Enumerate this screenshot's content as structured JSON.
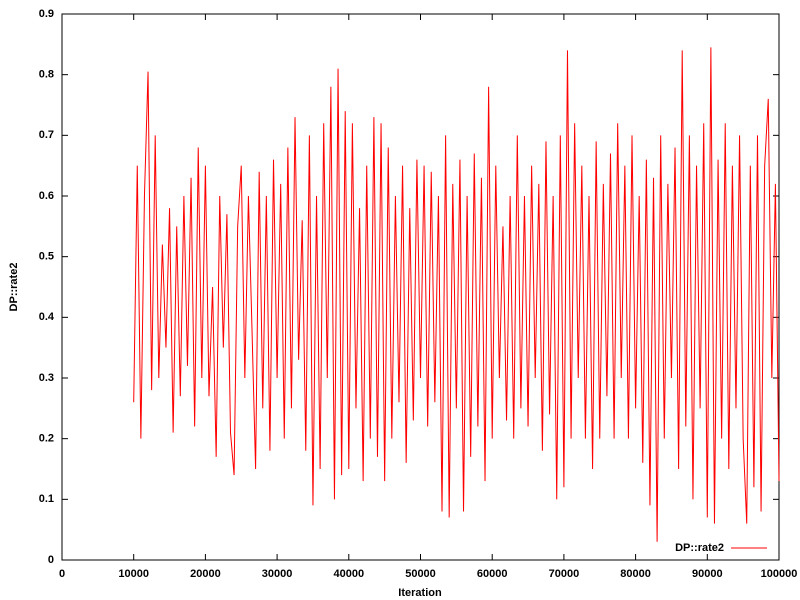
{
  "chart_data": {
    "type": "line",
    "xlabel": "Iteration",
    "ylabel": "DP::rate2",
    "x": [
      10000,
      10500,
      11000,
      11500,
      12000,
      12500,
      13000,
      13500,
      14000,
      14500,
      15000,
      15500,
      16000,
      16500,
      17000,
      17500,
      18000,
      18500,
      19000,
      19500,
      20000,
      20500,
      21000,
      21500,
      22000,
      22500,
      23000,
      23500,
      24000,
      24500,
      25000,
      25500,
      26000,
      26500,
      27000,
      27500,
      28000,
      28500,
      29000,
      29500,
      30000,
      30500,
      31000,
      31500,
      32000,
      32500,
      33000,
      33500,
      34000,
      34500,
      35000,
      35500,
      36000,
      36500,
      37000,
      37500,
      38000,
      38500,
      39000,
      39500,
      40000,
      40500,
      41000,
      41500,
      42000,
      42500,
      43000,
      43500,
      44000,
      44500,
      45000,
      45500,
      46000,
      46500,
      47000,
      47500,
      48000,
      48500,
      49000,
      49500,
      50000,
      50500,
      51000,
      51500,
      52000,
      52500,
      53000,
      53500,
      54000,
      54500,
      55000,
      55500,
      56000,
      56500,
      57000,
      57500,
      58000,
      58500,
      59000,
      59500,
      60000,
      60500,
      61000,
      61500,
      62000,
      62500,
      63000,
      63500,
      64000,
      64500,
      65000,
      65500,
      66000,
      66500,
      67000,
      67500,
      68000,
      68500,
      69000,
      69500,
      70000,
      70500,
      71000,
      71500,
      72000,
      72500,
      73000,
      73500,
      74000,
      74500,
      75000,
      75500,
      76000,
      76500,
      77000,
      77500,
      78000,
      78500,
      79000,
      79500,
      80000,
      80500,
      81000,
      81500,
      82000,
      82500,
      83000,
      83500,
      84000,
      84500,
      85000,
      85500,
      86000,
      86500,
      87000,
      87500,
      88000,
      88500,
      89000,
      89500,
      90000,
      90500,
      91000,
      91500,
      92000,
      92500,
      93000,
      93500,
      94000,
      94500,
      95000,
      95500,
      96000,
      96500,
      97000,
      97500,
      98000,
      98500,
      99000,
      99500,
      100000
    ],
    "series": [
      {
        "name": "DP::rate2",
        "color": "#ff0000",
        "values": [
          0.26,
          0.65,
          0.2,
          0.6,
          0.805,
          0.28,
          0.7,
          0.3,
          0.52,
          0.35,
          0.58,
          0.21,
          0.55,
          0.27,
          0.6,
          0.32,
          0.63,
          0.22,
          0.68,
          0.3,
          0.65,
          0.27,
          0.45,
          0.17,
          0.6,
          0.35,
          0.57,
          0.21,
          0.14,
          0.55,
          0.65,
          0.3,
          0.6,
          0.38,
          0.15,
          0.64,
          0.25,
          0.6,
          0.18,
          0.66,
          0.3,
          0.62,
          0.2,
          0.68,
          0.25,
          0.73,
          0.33,
          0.56,
          0.18,
          0.7,
          0.09,
          0.6,
          0.15,
          0.72,
          0.3,
          0.78,
          0.1,
          0.81,
          0.14,
          0.74,
          0.15,
          0.72,
          0.25,
          0.58,
          0.13,
          0.65,
          0.2,
          0.73,
          0.17,
          0.72,
          0.13,
          0.68,
          0.2,
          0.6,
          0.26,
          0.65,
          0.16,
          0.58,
          0.23,
          0.66,
          0.3,
          0.65,
          0.22,
          0.64,
          0.26,
          0.6,
          0.08,
          0.7,
          0.07,
          0.62,
          0.25,
          0.66,
          0.08,
          0.6,
          0.17,
          0.67,
          0.22,
          0.63,
          0.13,
          0.78,
          0.2,
          0.65,
          0.3,
          0.55,
          0.23,
          0.6,
          0.2,
          0.7,
          0.25,
          0.6,
          0.22,
          0.65,
          0.3,
          0.62,
          0.18,
          0.69,
          0.24,
          0.6,
          0.1,
          0.7,
          0.12,
          0.84,
          0.2,
          0.72,
          0.3,
          0.65,
          0.2,
          0.6,
          0.15,
          0.69,
          0.2,
          0.62,
          0.27,
          0.67,
          0.2,
          0.72,
          0.3,
          0.65,
          0.2,
          0.7,
          0.25,
          0.6,
          0.16,
          0.66,
          0.09,
          0.63,
          0.03,
          0.7,
          0.2,
          0.62,
          0.3,
          0.68,
          0.15,
          0.84,
          0.22,
          0.7,
          0.1,
          0.65,
          0.25,
          0.72,
          0.07,
          0.845,
          0.06,
          0.66,
          0.2,
          0.72,
          0.15,
          0.65,
          0.25,
          0.7,
          0.2,
          0.06,
          0.65,
          0.12,
          0.7,
          0.08,
          0.65,
          0.76,
          0.3,
          0.62,
          0.13
        ]
      }
    ],
    "xlim": [
      0,
      100000
    ],
    "xticks": [
      0,
      10000,
      20000,
      30000,
      40000,
      50000,
      60000,
      70000,
      80000,
      90000,
      100000
    ],
    "ylim": [
      0,
      0.9
    ],
    "yticks": [
      0,
      0.1,
      0.2,
      0.3,
      0.4,
      0.5,
      0.6,
      0.7,
      0.8,
      0.9
    ],
    "legend": "bottom-right"
  }
}
